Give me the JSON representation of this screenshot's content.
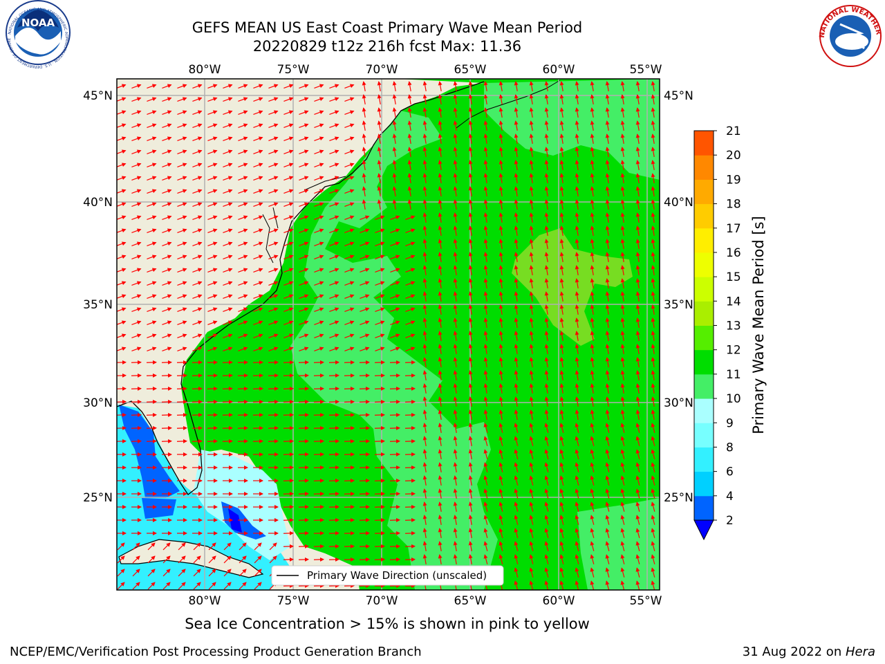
{
  "title": {
    "line1": "GEFS MEAN US East Coast Primary Wave Mean Period",
    "line2": "20220829 t12z 216h fcst   Max: 11.36"
  },
  "subcaption": "Sea Ice Concentration > 15% is shown in pink to yellow",
  "footer": {
    "left": "NCEP/EMC/Verification Post Processing Product Generation Branch",
    "right_date": "31 Aug 2022 on ",
    "right_host": "Hera"
  },
  "map": {
    "lon_labels": [
      "80°W",
      "75°W",
      "70°W",
      "65°W",
      "60°W",
      "55°W"
    ],
    "lat_labels": [
      "45°N",
      "40°N",
      "35°N",
      "30°N",
      "25°N"
    ],
    "legend_label": "Primary Wave Direction (unscaled)",
    "land_color": "#efeddc",
    "ocean_green": "#00dd00",
    "ocean_light_green": "#44ee66",
    "arrow_color": "#ff0000"
  },
  "colorbar": {
    "label": "Primary Wave Mean Period [s]",
    "ticks": [
      "2",
      "4",
      "6",
      "8",
      "9",
      "10",
      "11",
      "12",
      "13",
      "14",
      "15",
      "16",
      "17",
      "18",
      "19",
      "20",
      "21"
    ],
    "colors": [
      "#0064ff",
      "#00d0ff",
      "#33f0ff",
      "#77ffff",
      "#aaffff",
      "#44ee66",
      "#00dd00",
      "#55ee00",
      "#aaee00",
      "#ccff00",
      "#eeff00",
      "#ffee00",
      "#ffcc00",
      "#ffaa00",
      "#ff8800",
      "#ff5500",
      "#ff2200",
      "#ff0000"
    ],
    "under_color": "#0000ff"
  },
  "logos": {
    "noaa_text": "NOAA",
    "noaa_ring": "NATIONAL OCEANIC AND ATMOSPHERIC ADMINISTRATION · U.S. DEPARTMENT OF COMMERCE",
    "nws_ring": "NATIONAL WEATHER SERVICE"
  }
}
